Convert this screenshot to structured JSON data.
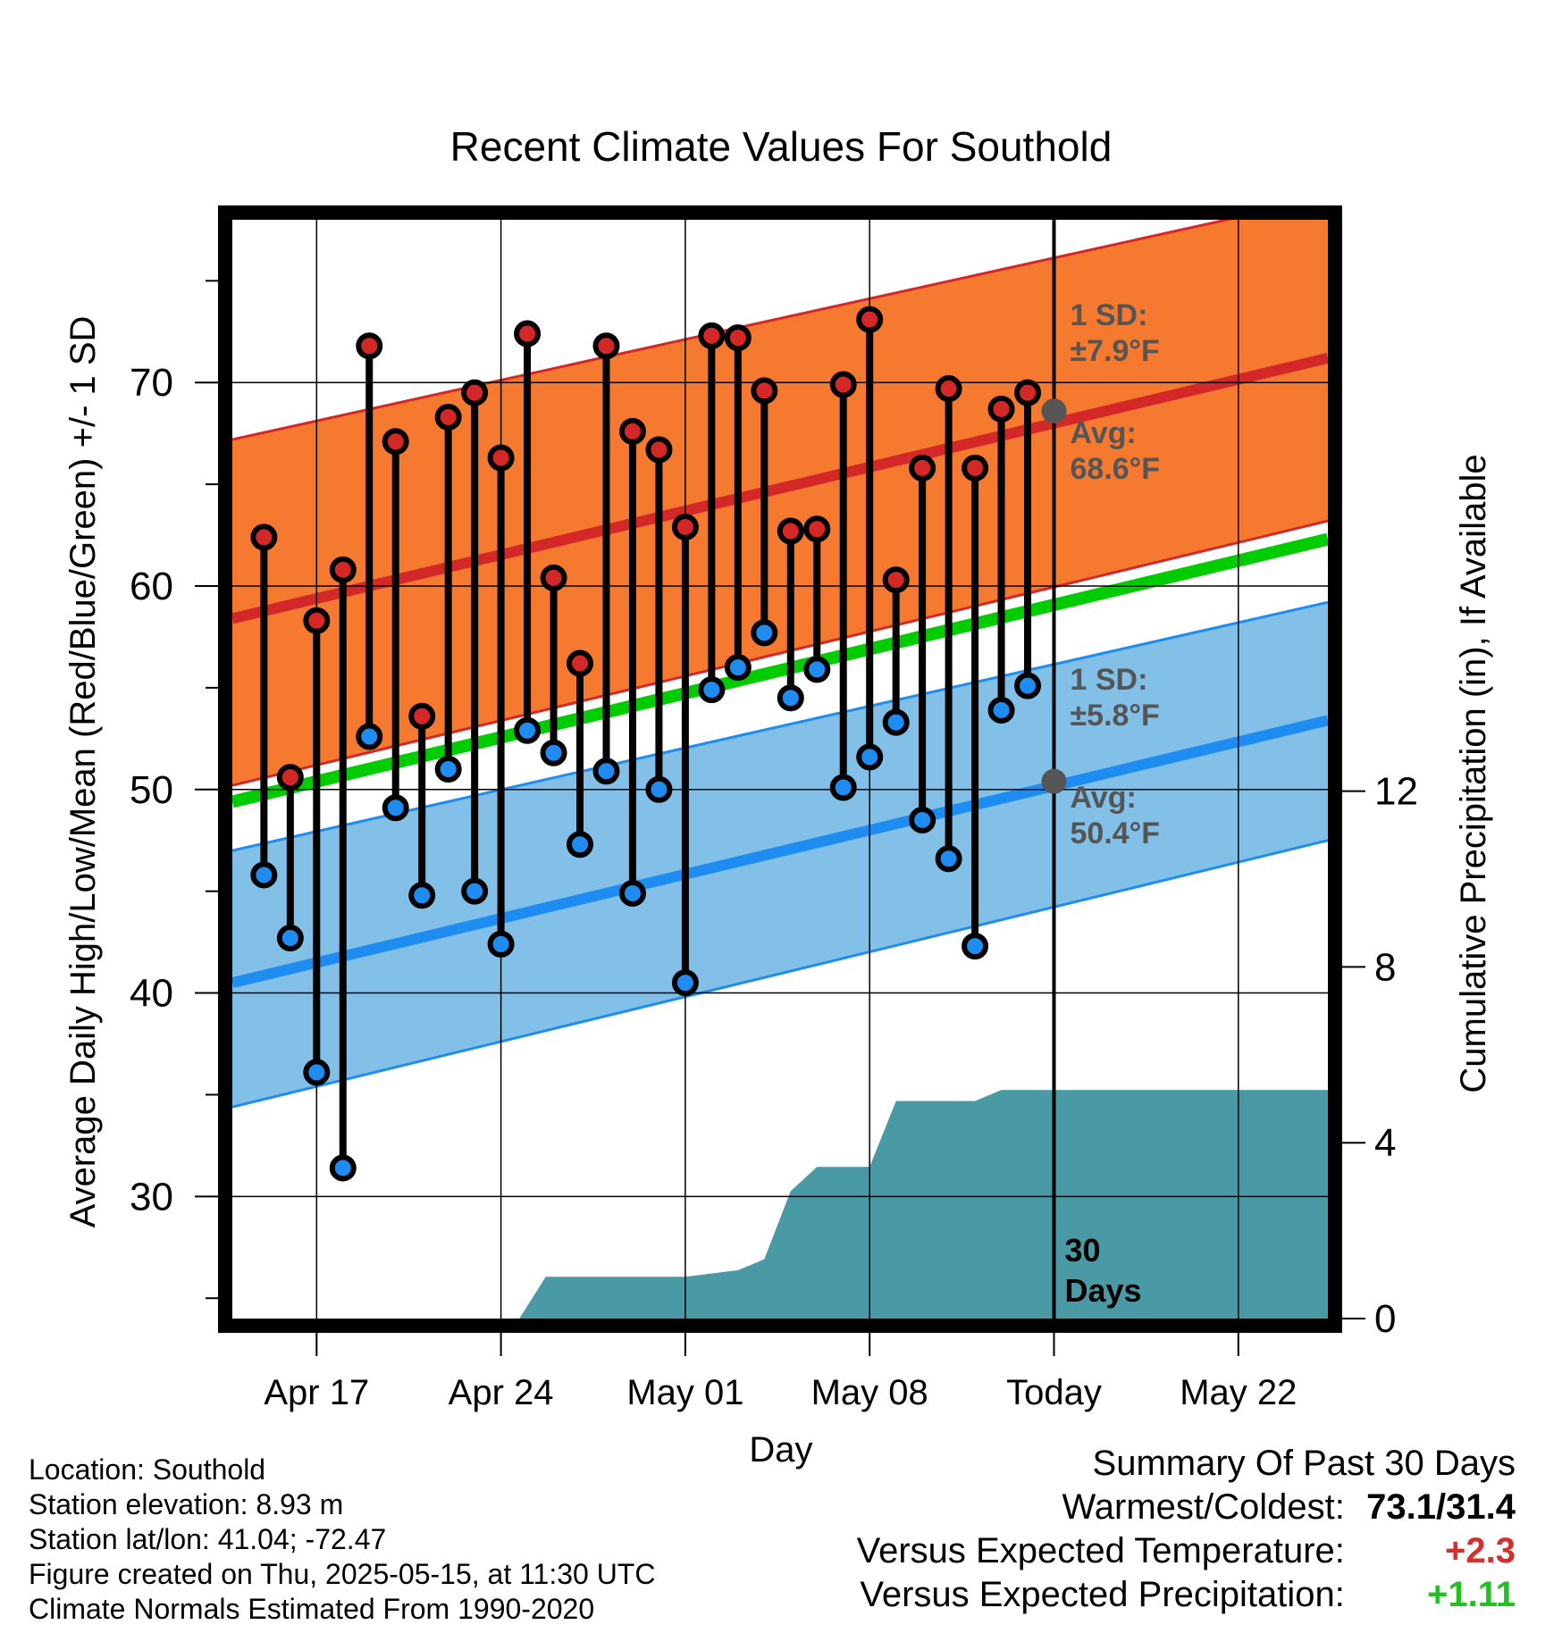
{
  "chart_data": {
    "type": "line",
    "title": "Recent Climate Values For Southold",
    "xlabel": "Day",
    "ylabel": "Average Daily High/Low/Mean (Red/Blue/Green) +/- 1 SD",
    "y2label": "Cumulative Precipitation (in), If Available",
    "x_tick_labels": [
      "Apr 17",
      "Apr 24",
      "May 01",
      "May 08",
      "Today",
      "May 22"
    ],
    "x_tick_days": [
      17,
      24,
      31,
      38,
      45,
      52
    ],
    "xlim_days": [
      13.8,
      55.4
    ],
    "ylim": [
      24,
      78
    ],
    "y_ticks": [
      30,
      40,
      50,
      60,
      70
    ],
    "y2lim": [
      0,
      25
    ],
    "y2_ticks": [
      0,
      4,
      8,
      12
    ],
    "grid": true,
    "today_day": 45,
    "days_label": [
      "30",
      "Days"
    ],
    "normals": {
      "high_avg": [
        58.4,
        71.2
      ],
      "high_sd_upper": [
        67.2,
        79.1
      ],
      "high_sd_lower": [
        50.2,
        63.2
      ],
      "mean_avg": [
        49.4,
        62.3
      ],
      "low_avg": [
        40.5,
        53.4
      ],
      "low_sd_upper": [
        47.0,
        59.2
      ],
      "low_sd_lower": [
        34.4,
        47.5
      ]
    },
    "annotations": {
      "high_sd_line1": "1 SD:",
      "high_sd_line2": "±7.9°F",
      "high_avg_line1": "Avg:",
      "high_avg_line2": "68.6°F",
      "low_sd_line1": "1 SD:",
      "low_sd_line2": "±5.8°F",
      "low_avg_line1": "Avg:",
      "low_avg_line2": "50.4°F",
      "today_high_value": 68.6,
      "today_low_value": 50.4
    },
    "daily": {
      "day": [
        15,
        16,
        17,
        18,
        19,
        20,
        21,
        22,
        23,
        24,
        25,
        26,
        27,
        28,
        29,
        30,
        31,
        32,
        33,
        34,
        35,
        36,
        37,
        38,
        39,
        40,
        41,
        42,
        43,
        44
      ],
      "high": [
        62.4,
        50.6,
        58.3,
        60.8,
        71.8,
        67.1,
        53.6,
        68.3,
        69.5,
        66.3,
        72.4,
        60.4,
        56.2,
        71.8,
        67.6,
        66.7,
        62.9,
        72.3,
        72.2,
        69.6,
        62.7,
        62.8,
        69.9,
        73.1,
        60.3,
        65.8,
        69.7,
        65.8,
        68.7,
        69.5
      ],
      "low": [
        45.8,
        42.7,
        36.1,
        31.4,
        52.6,
        49.1,
        44.8,
        51.0,
        45.0,
        42.4,
        52.9,
        51.8,
        47.3,
        50.9,
        44.9,
        50.0,
        40.5,
        54.9,
        56.0,
        57.7,
        54.5,
        55.9,
        50.1,
        51.6,
        53.3,
        48.5,
        46.6,
        42.3,
        53.9,
        55.1
      ]
    },
    "precip": {
      "day": [
        13.8,
        24.7,
        25.7,
        26.6,
        31.0,
        33.0,
        34.0,
        35.0,
        36.0,
        37.0,
        38.0,
        39.0,
        40.0,
        41.0,
        42.0,
        43.0,
        55.4
      ],
      "value": [
        0,
        0,
        0.95,
        0.95,
        0.95,
        1.1,
        1.35,
        2.9,
        3.45,
        3.45,
        3.45,
        4.95,
        4.95,
        4.95,
        4.95,
        5.2,
        5.2
      ]
    }
  },
  "info": {
    "location": "Location: Southold",
    "elevation": "Station elevation: 8.93 m",
    "latlon": "Station lat/lon: 41.04; -72.47",
    "created": "Figure created on Thu, 2025-05-15, at 11:30 UTC",
    "normals": "Climate Normals Estimated From 1990-2020"
  },
  "summary": {
    "heading": "Summary Of Past 30 Days",
    "warmest_label": "Warmest/Coldest:",
    "warmest_value": "73.1/31.4",
    "temp_label": "Versus Expected Temperature:",
    "temp_value": "+2.3",
    "precip_label": "Versus Expected Precipitation:",
    "precip_value": "+1.11"
  },
  "colors": {
    "high_band": "#f57a30",
    "high_line": "#d42828",
    "mean_line": "#00cc00",
    "low_band": "#82c0e8",
    "low_line": "#1e8cf0",
    "precip_fill": "#4a9aa5",
    "high_dot": "#d42828",
    "low_dot": "#1e8cf0",
    "annotation": "#555555"
  }
}
